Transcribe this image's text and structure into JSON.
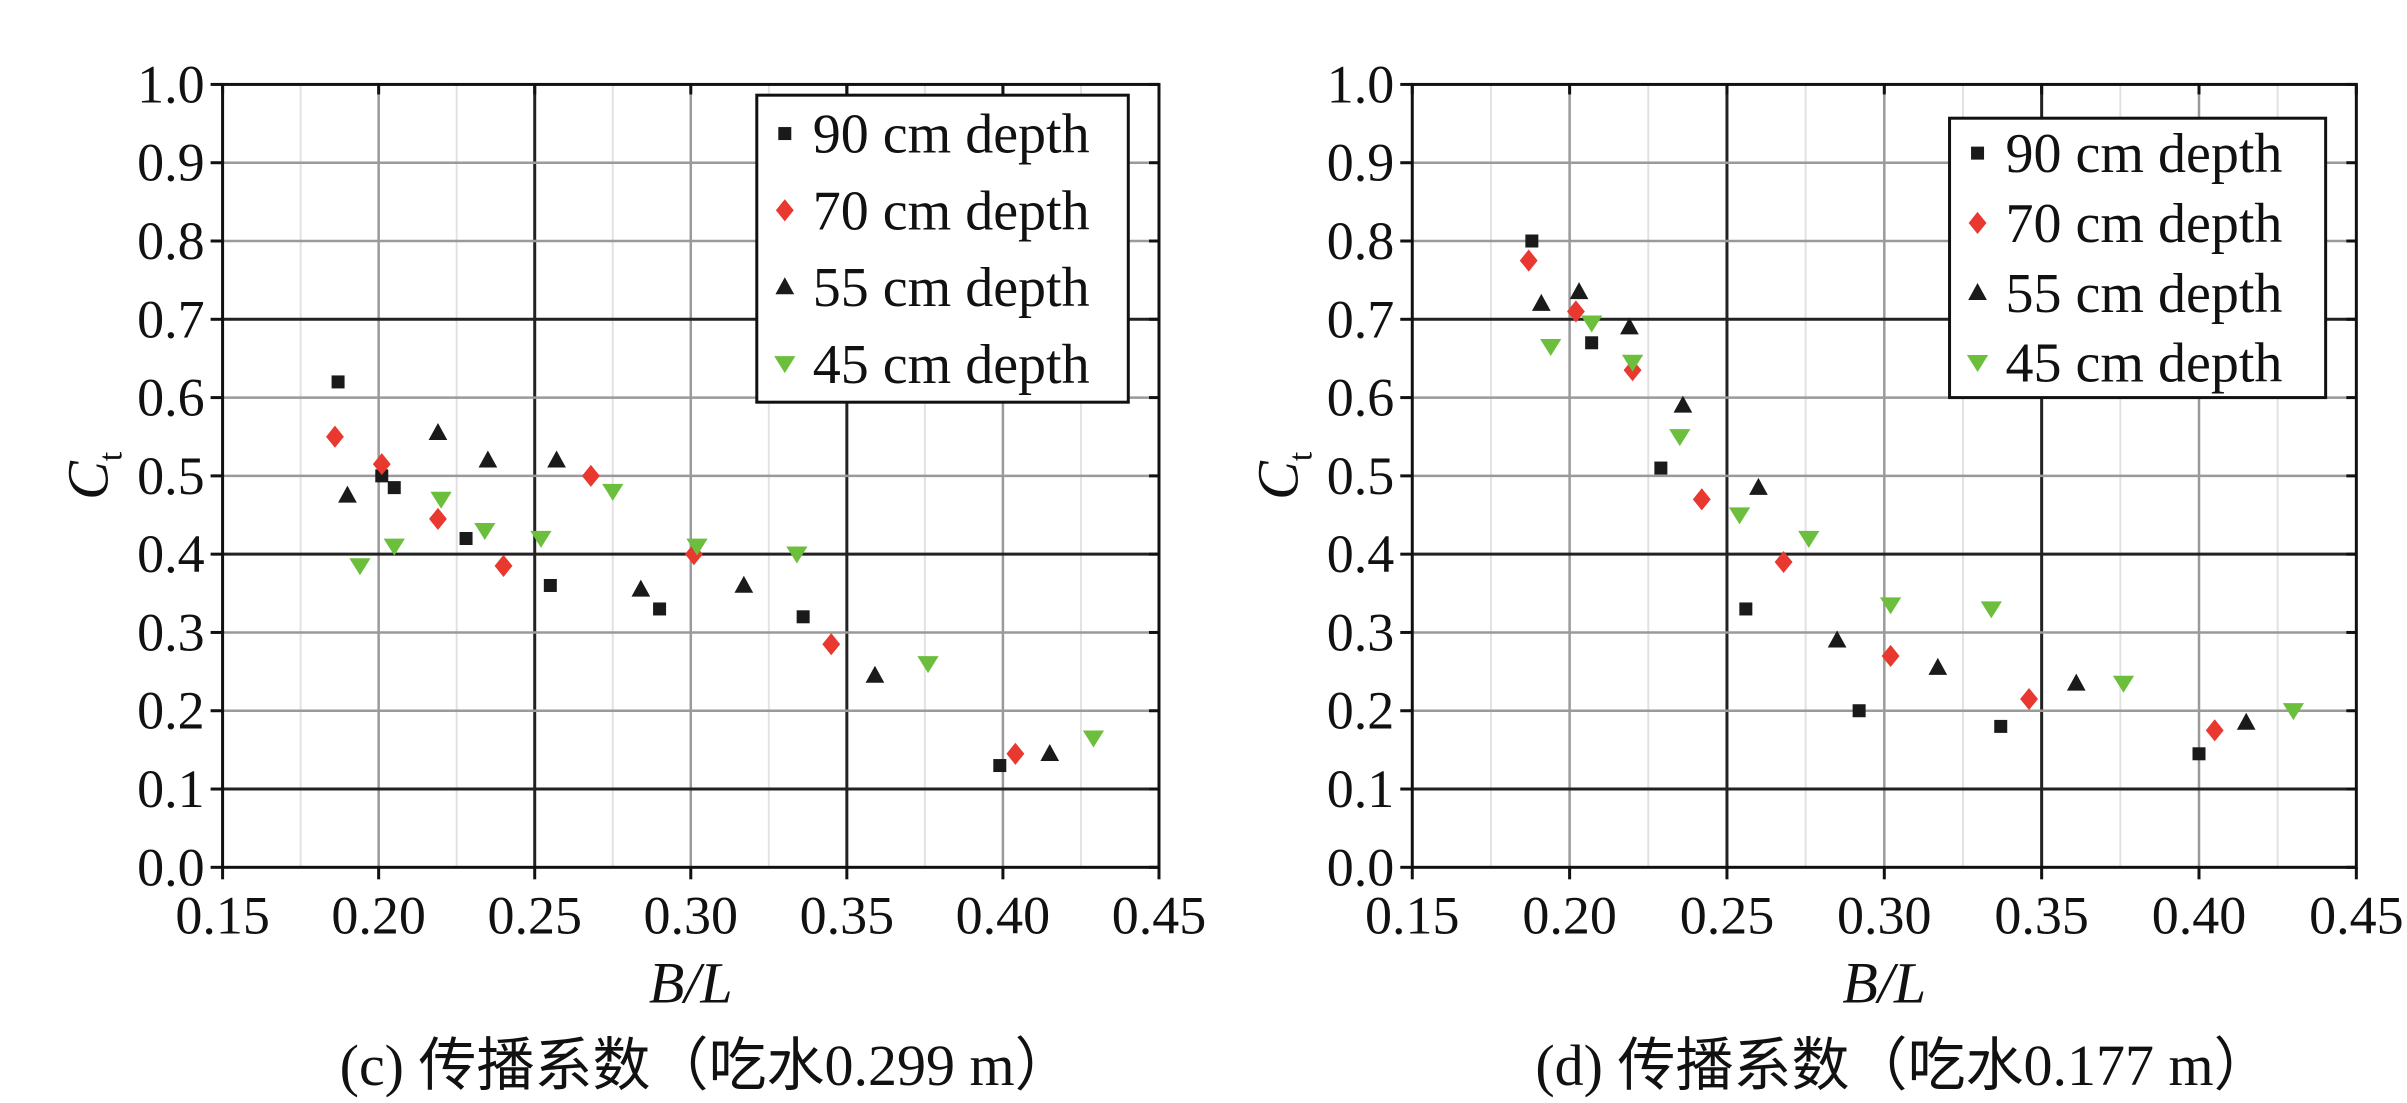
{
  "chart_data": [
    {
      "type": "scatter",
      "caption": "(c) 传播系数（吃水0.299 m）",
      "xlabel": "B/L",
      "ylabel": "C",
      "ylabel_sub": "t",
      "xlim": [
        0.15,
        0.45
      ],
      "ylim": [
        0.0,
        1.0
      ],
      "xticks": [
        "0.15",
        "0.20",
        "0.25",
        "0.30",
        "0.35",
        "0.40",
        "0.45"
      ],
      "yticks": [
        "0.0",
        "0.1",
        "0.2",
        "0.3",
        "0.4",
        "0.5",
        "0.6",
        "0.7",
        "0.8",
        "0.9",
        "1.0"
      ],
      "grid": true,
      "legend_position": "top-right",
      "series": [
        {
          "name": "90 cm depth",
          "marker": "square",
          "color": "#1a1a1a",
          "x": [
            0.187,
            0.201,
            0.205,
            0.228,
            0.255,
            0.29,
            0.336,
            0.399
          ],
          "y": [
            0.62,
            0.5,
            0.485,
            0.42,
            0.36,
            0.33,
            0.32,
            0.13
          ]
        },
        {
          "name": "70 cm depth",
          "marker": "diamond",
          "color": "#e8382f",
          "x": [
            0.186,
            0.201,
            0.219,
            0.24,
            0.268,
            0.301,
            0.345,
            0.404
          ],
          "y": [
            0.55,
            0.515,
            0.445,
            0.385,
            0.5,
            0.4,
            0.285,
            0.145
          ]
        },
        {
          "name": "55 cm depth",
          "marker": "triangle-up",
          "color": "#1a1a1a",
          "x": [
            0.19,
            0.219,
            0.235,
            0.257,
            0.284,
            0.317,
            0.359,
            0.415
          ],
          "y": [
            0.475,
            0.555,
            0.52,
            0.52,
            0.355,
            0.36,
            0.245,
            0.145
          ]
        },
        {
          "name": "45 cm depth",
          "marker": "triangle-down",
          "color": "#6cbf3c",
          "x": [
            0.194,
            0.205,
            0.22,
            0.234,
            0.252,
            0.275,
            0.302,
            0.334,
            0.376,
            0.429
          ],
          "y": [
            0.385,
            0.41,
            0.47,
            0.43,
            0.42,
            0.48,
            0.41,
            0.4,
            0.26,
            0.165
          ]
        }
      ]
    },
    {
      "type": "scatter",
      "caption": "(d) 传播系数（吃水0.177 m）",
      "xlabel": "B/L",
      "ylabel": "C",
      "ylabel_sub": "t",
      "xlim": [
        0.15,
        0.45
      ],
      "ylim": [
        0.0,
        1.0
      ],
      "xticks": [
        "0.15",
        "0.20",
        "0.25",
        "0.30",
        "0.35",
        "0.40",
        "0.45"
      ],
      "yticks": [
        "0.0",
        "0.1",
        "0.2",
        "0.3",
        "0.4",
        "0.5",
        "0.6",
        "0.7",
        "0.8",
        "0.9",
        "1.0"
      ],
      "grid": true,
      "legend_position": "top-right",
      "series": [
        {
          "name": "90 cm depth",
          "marker": "square",
          "color": "#1a1a1a",
          "x": [
            0.188,
            0.207,
            0.229,
            0.256,
            0.292,
            0.337,
            0.4
          ],
          "y": [
            0.8,
            0.67,
            0.51,
            0.33,
            0.2,
            0.18,
            0.145
          ]
        },
        {
          "name": "70 cm depth",
          "marker": "diamond",
          "color": "#e8382f",
          "x": [
            0.187,
            0.202,
            0.22,
            0.242,
            0.268,
            0.302,
            0.346,
            0.405
          ],
          "y": [
            0.775,
            0.71,
            0.635,
            0.47,
            0.39,
            0.27,
            0.215,
            0.175
          ]
        },
        {
          "name": "55 cm depth",
          "marker": "triangle-up",
          "color": "#1a1a1a",
          "x": [
            0.191,
            0.203,
            0.219,
            0.236,
            0.26,
            0.285,
            0.317,
            0.361,
            0.415
          ],
          "y": [
            0.72,
            0.735,
            0.69,
            0.59,
            0.485,
            0.29,
            0.255,
            0.235,
            0.185
          ]
        },
        {
          "name": "45 cm depth",
          "marker": "triangle-down",
          "color": "#6cbf3c",
          "x": [
            0.194,
            0.207,
            0.22,
            0.235,
            0.254,
            0.276,
            0.302,
            0.334,
            0.376,
            0.43
          ],
          "y": [
            0.665,
            0.695,
            0.645,
            0.55,
            0.45,
            0.42,
            0.335,
            0.33,
            0.235,
            0.2
          ]
        }
      ]
    }
  ]
}
